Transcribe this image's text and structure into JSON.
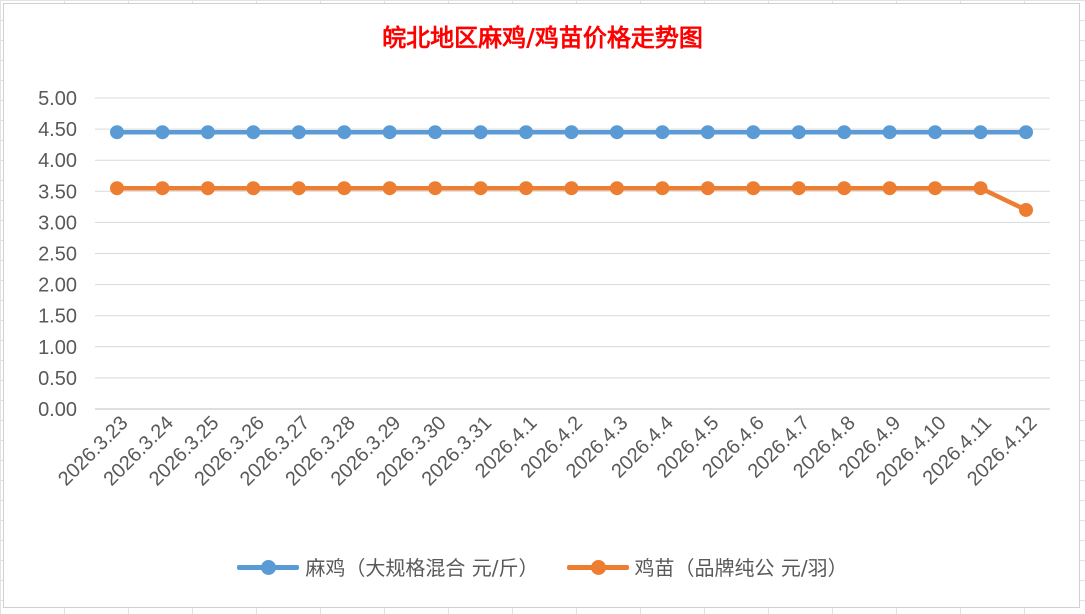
{
  "chart_data": {
    "type": "line",
    "title": "皖北地区麻鸡/鸡苗价格走势图",
    "xlabel": "",
    "ylabel": "",
    "ylim": [
      0,
      5
    ],
    "yticks": [
      "0.00",
      "0.50",
      "1.00",
      "1.50",
      "2.00",
      "2.50",
      "3.00",
      "3.50",
      "4.00",
      "4.50",
      "5.00"
    ],
    "grid": true,
    "legend_position": "bottom",
    "categories": [
      "2026.3.23",
      "2026.3.24",
      "2026.3.25",
      "2026.3.26",
      "2026.3.27",
      "2026.3.28",
      "2026.3.29",
      "2026.3.30",
      "2026.3.31",
      "2026.4.1",
      "2026.4.2",
      "2026.4.3",
      "2026.4.4",
      "2026.4.5",
      "2026.4.6",
      "2026.4.7",
      "2026.4.8",
      "2026.4.9",
      "2026.4.10",
      "2026.4.11",
      "2026.4.12"
    ],
    "series": [
      {
        "name": "麻鸡（大规格混合 元/斤）",
        "color": "#5b9bd5",
        "values": [
          4.45,
          4.45,
          4.45,
          4.45,
          4.45,
          4.45,
          4.45,
          4.45,
          4.45,
          4.45,
          4.45,
          4.45,
          4.45,
          4.45,
          4.45,
          4.45,
          4.45,
          4.45,
          4.45,
          4.45,
          4.45
        ]
      },
      {
        "name": "鸡苗（品牌纯公 元/羽）",
        "color": "#ed7d31",
        "values": [
          3.55,
          3.55,
          3.55,
          3.55,
          3.55,
          3.55,
          3.55,
          3.55,
          3.55,
          3.55,
          3.55,
          3.55,
          3.55,
          3.55,
          3.55,
          3.55,
          3.55,
          3.55,
          3.55,
          3.55,
          3.2
        ]
      }
    ]
  }
}
